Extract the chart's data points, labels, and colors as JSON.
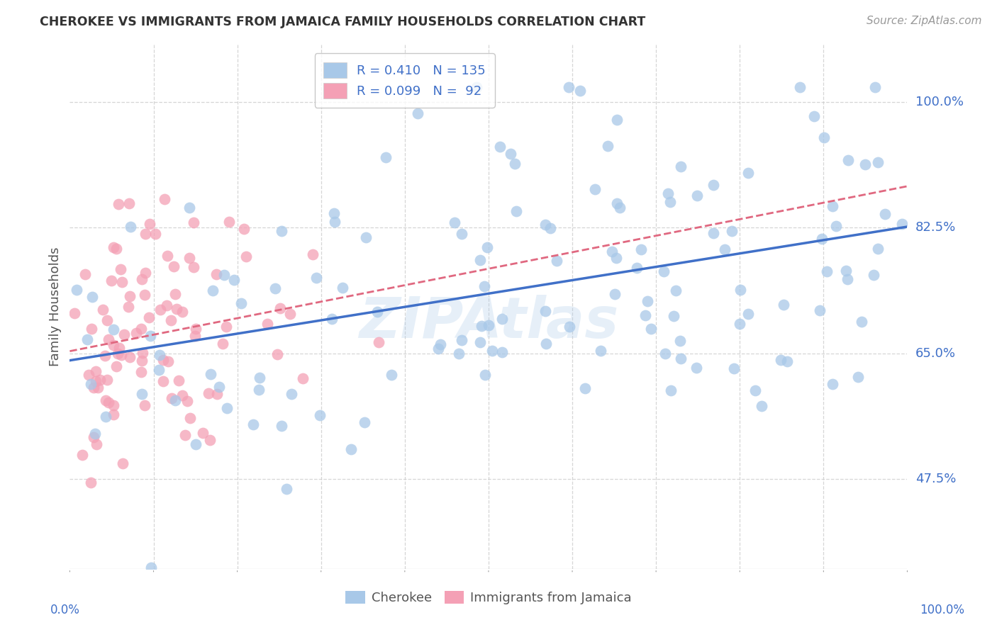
{
  "title": "CHEROKEE VS IMMIGRANTS FROM JAMAICA FAMILY HOUSEHOLDS CORRELATION CHART",
  "source_text": "Source: ZipAtlas.com",
  "ylabel": "Family Households",
  "ytick_labels": [
    "47.5%",
    "65.0%",
    "82.5%",
    "100.0%"
  ],
  "ytick_values": [
    0.475,
    0.65,
    0.825,
    1.0
  ],
  "xlim": [
    0.0,
    1.0
  ],
  "ylim": [
    0.35,
    1.08
  ],
  "legend_r1": "R = 0.410",
  "legend_n1": "N = 135",
  "legend_r2": "R = 0.099",
  "legend_n2": "N =  92",
  "color_cherokee": "#a8c8e8",
  "color_jamaica": "#f4a0b5",
  "color_line_cherokee": "#4070c8",
  "color_line_jamaica": "#e06880",
  "watermark": "ZIPAtlas",
  "background_color": "#ffffff",
  "grid_color": "#cccccc",
  "title_color": "#333333",
  "source_color": "#999999",
  "ylabel_color": "#555555",
  "tick_label_color": "#4070c8",
  "bottom_label_color": "#4070c8"
}
